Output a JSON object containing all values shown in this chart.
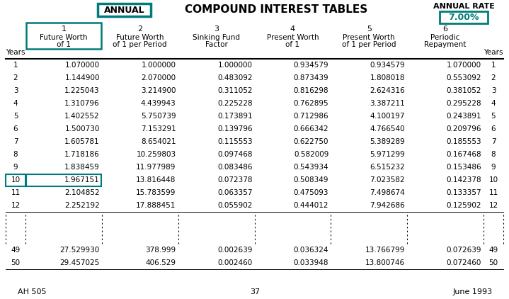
{
  "title_left": "ANNUAL",
  "title_center": "COMPOUND INTEREST TABLES",
  "title_rate_label": "ANNUAL RATE",
  "title_rate_value": "7.00%",
  "col_numbers": [
    "1",
    "2",
    "3",
    "4",
    "5",
    "6"
  ],
  "col_headers": [
    [
      "Future Worth",
      "of 1"
    ],
    [
      "Future Worth",
      "of 1 per Period"
    ],
    [
      "Sinking Fund",
      "Factor"
    ],
    [
      "Present Worth",
      "of 1"
    ],
    [
      "Present Worth",
      "of 1 per Period"
    ],
    [
      "Periodic",
      "Repayment"
    ]
  ],
  "years_label": "Years",
  "rows": [
    [
      1,
      1.07,
      1.0,
      1.0,
      0.934579,
      0.934579,
      1.07
    ],
    [
      2,
      1.1449,
      2.07,
      0.483092,
      0.873439,
      1.808018,
      0.553092
    ],
    [
      3,
      1.225043,
      3.2149,
      0.311052,
      0.816298,
      2.624316,
      0.381052
    ],
    [
      4,
      1.310796,
      4.439943,
      0.225228,
      0.762895,
      3.387211,
      0.295228
    ],
    [
      5,
      1.402552,
      5.750739,
      0.173891,
      0.712986,
      4.100197,
      0.243891
    ],
    [
      6,
      1.50073,
      7.153291,
      0.139796,
      0.666342,
      4.76654,
      0.209796
    ],
    [
      7,
      1.605781,
      8.654021,
      0.115553,
      0.62275,
      5.389289,
      0.185553
    ],
    [
      8,
      1.718186,
      10.259803,
      0.097468,
      0.582009,
      5.971299,
      0.167468
    ],
    [
      9,
      1.838459,
      11.977989,
      0.083486,
      0.543934,
      6.515232,
      0.153486
    ],
    [
      10,
      1.967151,
      13.816448,
      0.072378,
      0.508349,
      7.023582,
      0.142378
    ],
    [
      11,
      2.104852,
      15.783599,
      0.063357,
      0.475093,
      7.498674,
      0.133357
    ],
    [
      12,
      2.252192,
      17.888451,
      0.055902,
      0.444012,
      7.942686,
      0.125902
    ],
    [
      49,
      27.52993,
      378.999,
      0.002639,
      0.036324,
      13.766799,
      0.072639
    ],
    [
      50,
      29.457025,
      406.528929,
      0.00246,
      0.033948,
      13.800746,
      0.07246
    ]
  ],
  "highlight_row": 10,
  "highlight_col": 1,
  "teal_color": "#007b7b",
  "bg_color": "#ffffff",
  "text_color": "#000000",
  "footer_left": "AH 505",
  "footer_center": "37",
  "footer_right": "June 1993"
}
